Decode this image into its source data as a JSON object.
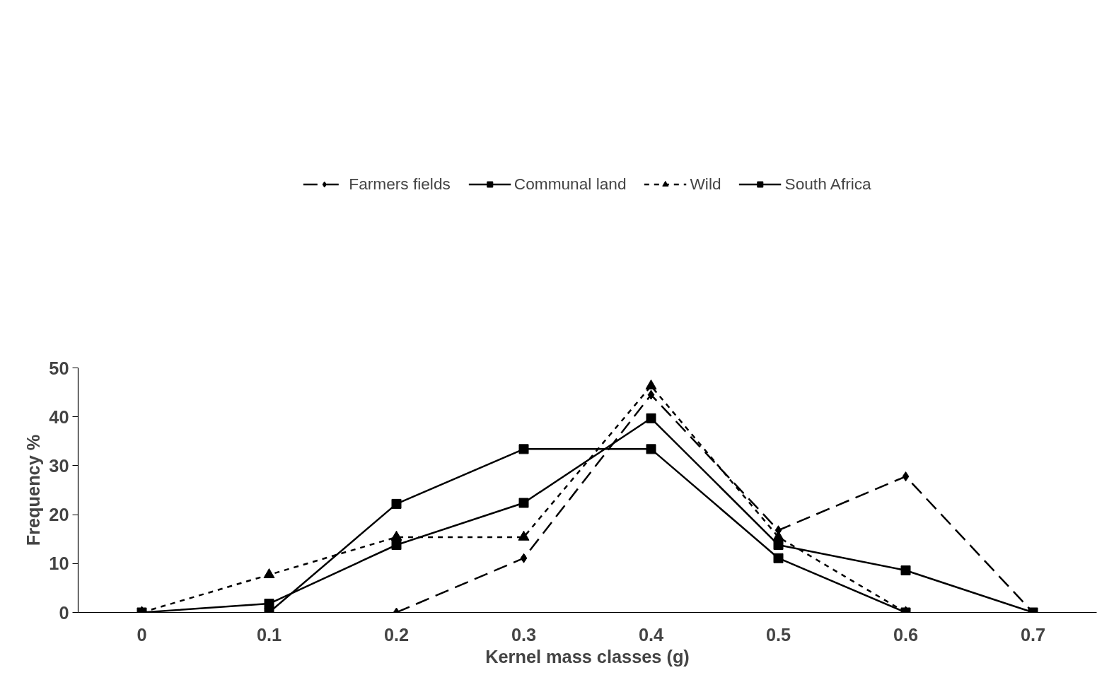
{
  "chart_data": {
    "type": "line",
    "xlabel": "Kernel mass classes (g)",
    "ylabel": "Frequency %",
    "categories": [
      "0",
      "0.1",
      "0.2",
      "0.3",
      "0.4",
      "0.5",
      "0.6",
      "0.7"
    ],
    "ylim": [
      0,
      50
    ],
    "yticks": [
      0,
      10,
      20,
      30,
      40,
      50
    ],
    "grid": false,
    "legend": "top",
    "series": [
      {
        "name": "Farmers fields",
        "color": "#000000",
        "marker": "diamond",
        "line_style": "dashed",
        "values": [
          null,
          null,
          0,
          11.1,
          44.5,
          16.8,
          27.8,
          0
        ]
      },
      {
        "name": "Communal land",
        "color": "#000000",
        "marker": "square",
        "line_style": "solid",
        "values": [
          null,
          0,
          22.2,
          33.4,
          33.4,
          11.1,
          0,
          null
        ]
      },
      {
        "name": "Wild",
        "color": "#000000",
        "marker": "triangle",
        "line_style": "dotted",
        "values": [
          0,
          7.7,
          15.4,
          15.4,
          46.3,
          15.4,
          0,
          null
        ]
      },
      {
        "name": "South Africa",
        "color": "#000000",
        "marker": "square",
        "line_style": "solid",
        "values": [
          0,
          1.8,
          13.8,
          22.4,
          39.7,
          13.8,
          8.6,
          0
        ]
      }
    ]
  }
}
